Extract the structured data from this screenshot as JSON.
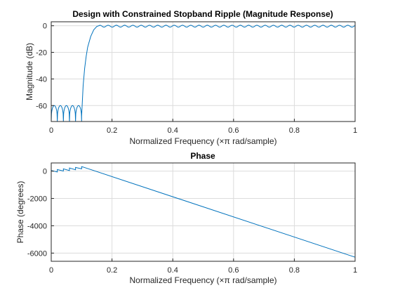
{
  "figure": {
    "background": "#ffffff",
    "axes_background": "#ffffff",
    "line_color": "#0072bd"
  },
  "chart_data": [
    {
      "type": "line",
      "title": "Design with Constrained Stopband Ripple (Magnitude Response)",
      "xlabel": "Normalized  Frequency    (×π  rad/sample)",
      "ylabel": "Magnitude (dB)",
      "xlim": [
        0,
        1
      ],
      "ylim": [
        -72,
        3
      ],
      "xticks": [
        0,
        0.2,
        0.4,
        0.6,
        0.8,
        1
      ],
      "xtick_labels": [
        "0",
        "0.2",
        "0.4",
        "0.6",
        "0.8",
        "1"
      ],
      "yticks": [
        0,
        -20,
        -40,
        -60
      ],
      "ytick_labels": [
        "0",
        "-20",
        "-40",
        "-60"
      ],
      "grid": true,
      "series": [
        {
          "kind": "magnitude_response",
          "stopband_edge": 0.1,
          "stopband_ripple_db": -60,
          "stopband_lobes": [
            0,
            0.02,
            0.04,
            0.06,
            0.08,
            0.1
          ],
          "passband_start": 0.16,
          "passband_ripple_db": 0.7,
          "passband_ripple_period": 0.0272,
          "x": [
            0.1,
            0.105,
            0.11,
            0.115,
            0.12,
            0.13,
            0.14,
            0.15,
            0.16
          ],
          "y": [
            -68,
            -45,
            -32,
            -23,
            -16,
            -8,
            -3,
            -0.5,
            0.3
          ]
        }
      ]
    },
    {
      "type": "line",
      "title": "Phase",
      "xlabel": "Normalized  Frequency    (×π  rad/sample)",
      "ylabel": "Phase (degrees)",
      "xlim": [
        0,
        1
      ],
      "ylim": [
        -6600,
        600
      ],
      "xticks": [
        0,
        0.2,
        0.4,
        0.6,
        0.8,
        1
      ],
      "xtick_labels": [
        "0",
        "0.2",
        "0.4",
        "0.6",
        "0.8",
        "1"
      ],
      "yticks": [
        0,
        -2000,
        -4000,
        -6000
      ],
      "ytick_labels": [
        "0",
        "-2000",
        "-4000",
        "-6000"
      ],
      "grid": true,
      "series": [
        {
          "kind": "phase_response",
          "sawtooth_segments": [
            {
              "x": [
                0.0,
                0.02
              ],
              "y": [
                50,
                -60
              ]
            },
            {
              "x": [
                0.02,
                0.04
              ],
              "y": [
                120,
                10
              ]
            },
            {
              "x": [
                0.04,
                0.06
              ],
              "y": [
                170,
                40
              ]
            },
            {
              "x": [
                0.06,
                0.08
              ],
              "y": [
                230,
                100
              ]
            },
            {
              "x": [
                0.08,
                0.1
              ],
              "y": [
                270,
                170
              ]
            }
          ],
          "x": [
            0.1,
            0.105,
            1.0
          ],
          "y": [
            330,
            300,
            -6300
          ]
        }
      ]
    }
  ]
}
